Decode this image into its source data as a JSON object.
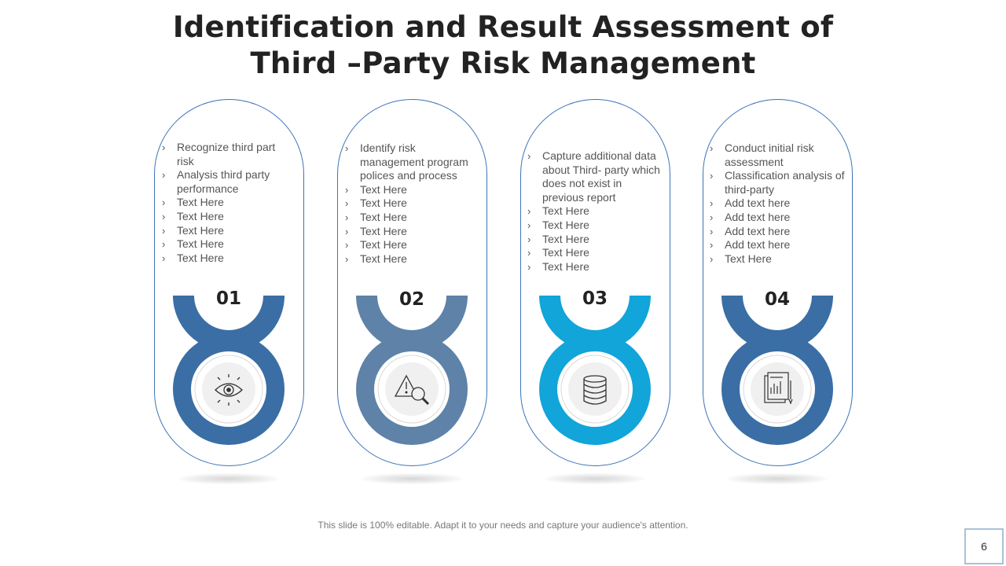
{
  "title": {
    "line1": "Identification and Result Assessment of",
    "line2": "Third –Party Risk Management"
  },
  "cards": [
    {
      "number": "01",
      "color": "#3a6ea5",
      "icon": "eye-icon",
      "bullets": [
        "Recognize third part risk",
        "Analysis third party performance",
        "Text Here",
        "Text Here",
        "Text Here",
        "Text Here",
        "Text Here"
      ]
    },
    {
      "number": "02",
      "color": "#5e82a8",
      "icon": "warning-magnifier-icon",
      "bullets": [
        "Identify risk management program polices and process",
        "Text Here",
        "Text Here",
        "Text Here",
        "Text Here",
        "Text Here",
        "Text Here"
      ]
    },
    {
      "number": "03",
      "color": "#11a5d9",
      "icon": "database-icon",
      "bullets": [
        "Capture additional data about Third- party which does not exist in previous report",
        "Text Here",
        "Text Here",
        "Text Here",
        "Text Here",
        "Text Here"
      ]
    },
    {
      "number": "04",
      "color": "#3a6ea5",
      "icon": "report-document-icon",
      "bullets": [
        "Conduct initial risk assessment",
        "Classification analysis of third-party",
        "Add text here",
        "Add text here",
        "Add text here",
        "Add text here",
        "Text Here"
      ]
    }
  ],
  "footer": "This slide is 100% editable. Adapt it to your needs and capture your audience's attention.",
  "page_number": "6"
}
